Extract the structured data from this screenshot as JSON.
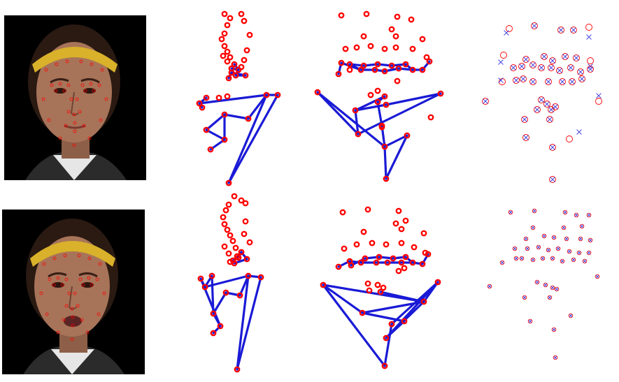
{
  "figure": {
    "rows": [
      {
        "id": "row-top",
        "expression": "neutral"
      },
      {
        "id": "row-bottom",
        "expression": "mouth-open"
      }
    ],
    "panels": [
      "face-photo-with-landmarks",
      "landmark-side-view",
      "landmark-front-view",
      "landmark-overlay-comparison"
    ]
  },
  "colors": {
    "marker": "#ff0000",
    "edge": "#1a1ad6",
    "cross": "#4040e0",
    "background": "#ffffff",
    "photo_bg": "#000000",
    "headband": "#d9b12a",
    "hair": "#2a1a12",
    "skin": "#a77459"
  }
}
